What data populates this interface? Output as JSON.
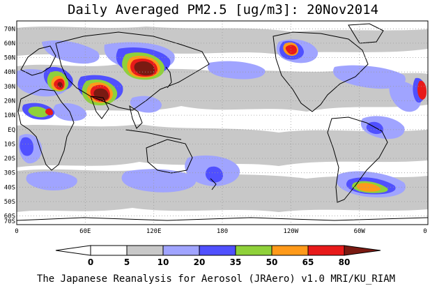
{
  "title": "Daily Averaged PM2.5 [ug/m3]: 20Nov2014",
  "footer": "The Japanese Reanalysis for Aerosol (JRAero) v1.0 MRI/KU_RIAM",
  "lat_labels": [
    "70N",
    "60N",
    "50N",
    "40N",
    "30N",
    "20N",
    "10N",
    "EQ",
    "10S",
    "20S",
    "30S",
    "40S",
    "50S",
    "60S",
    "70S"
  ],
  "lon_labels": [
    "0",
    "60E",
    "120E",
    "180",
    "120W",
    "60W",
    "0"
  ],
  "colorbar": {
    "ticks": [
      "0",
      "5",
      "10",
      "20",
      "35",
      "50",
      "65",
      "80"
    ],
    "colors": [
      "#ffffff",
      "#c8c8c8",
      "#a0a4ff",
      "#5050ff",
      "#8fd13a",
      "#ff9a1a",
      "#e81a1a",
      "#7a1a12"
    ]
  },
  "legend_layers": [
    {
      "name": "5-10",
      "color": "#c8c8c8"
    },
    {
      "name": "10-20",
      "color": "#a0a4ff"
    },
    {
      "name": "20-35",
      "color": "#5050ff"
    },
    {
      "name": "35-50",
      "color": "#8fd13a"
    },
    {
      "name": "50-65",
      "color": "#ff9a1a"
    },
    {
      "name": "65-80",
      "color": "#e81a1a"
    },
    {
      "name": ">80",
      "color": "#7a1a12"
    }
  ]
}
